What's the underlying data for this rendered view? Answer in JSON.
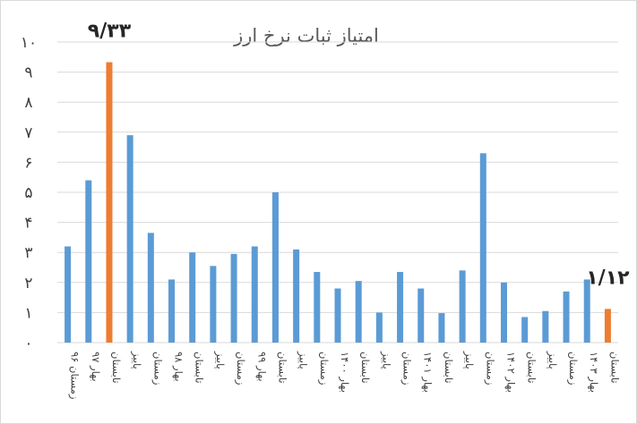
{
  "chart_data": {
    "type": "bar",
    "title": "امتیاز ثبات نرخ ارز",
    "ylim": [
      0,
      10
    ],
    "yticks": [
      "۰",
      "۱",
      "۲",
      "۳",
      "۴",
      "۵",
      "۶",
      "۷",
      "۸",
      "۹",
      "۱۰"
    ],
    "grid": true,
    "categories": [
      "زمستان ۹۶",
      "بهار ۹۷",
      "تابستان",
      "پاییز",
      "زمستان",
      "بهار ۹۸",
      "تابستان",
      "پاییز",
      "زمستان",
      "بهار ۹۹",
      "تابستان",
      "پاییز",
      "زمستان",
      "بهار ۱۴۰۰",
      "تابستان",
      "پاییز",
      "زمستان",
      "بهار ۱۴۰۱",
      "تابستان",
      "پاییز",
      "زمستان",
      "بهار ۱۴۰۲",
      "تابستان",
      "پاییز",
      "زمستان",
      "بهار ۱۴۰۳",
      "تابستان"
    ],
    "values": [
      3.2,
      5.4,
      9.33,
      6.9,
      3.65,
      2.1,
      3.0,
      2.55,
      2.95,
      3.2,
      5.0,
      3.1,
      2.35,
      1.8,
      2.05,
      1.0,
      2.35,
      1.8,
      0.98,
      2.4,
      6.3,
      2.0,
      0.85,
      1.05,
      1.7,
      2.1,
      1.12
    ],
    "highlight_indices": [
      2,
      26
    ],
    "colors": {
      "bar": "#5B9BD5",
      "highlight": "#ED7D31"
    },
    "annotations": [
      {
        "index": 2,
        "text": "۹/۳۳"
      },
      {
        "index": 26,
        "text": "۱/۱۲"
      }
    ]
  }
}
